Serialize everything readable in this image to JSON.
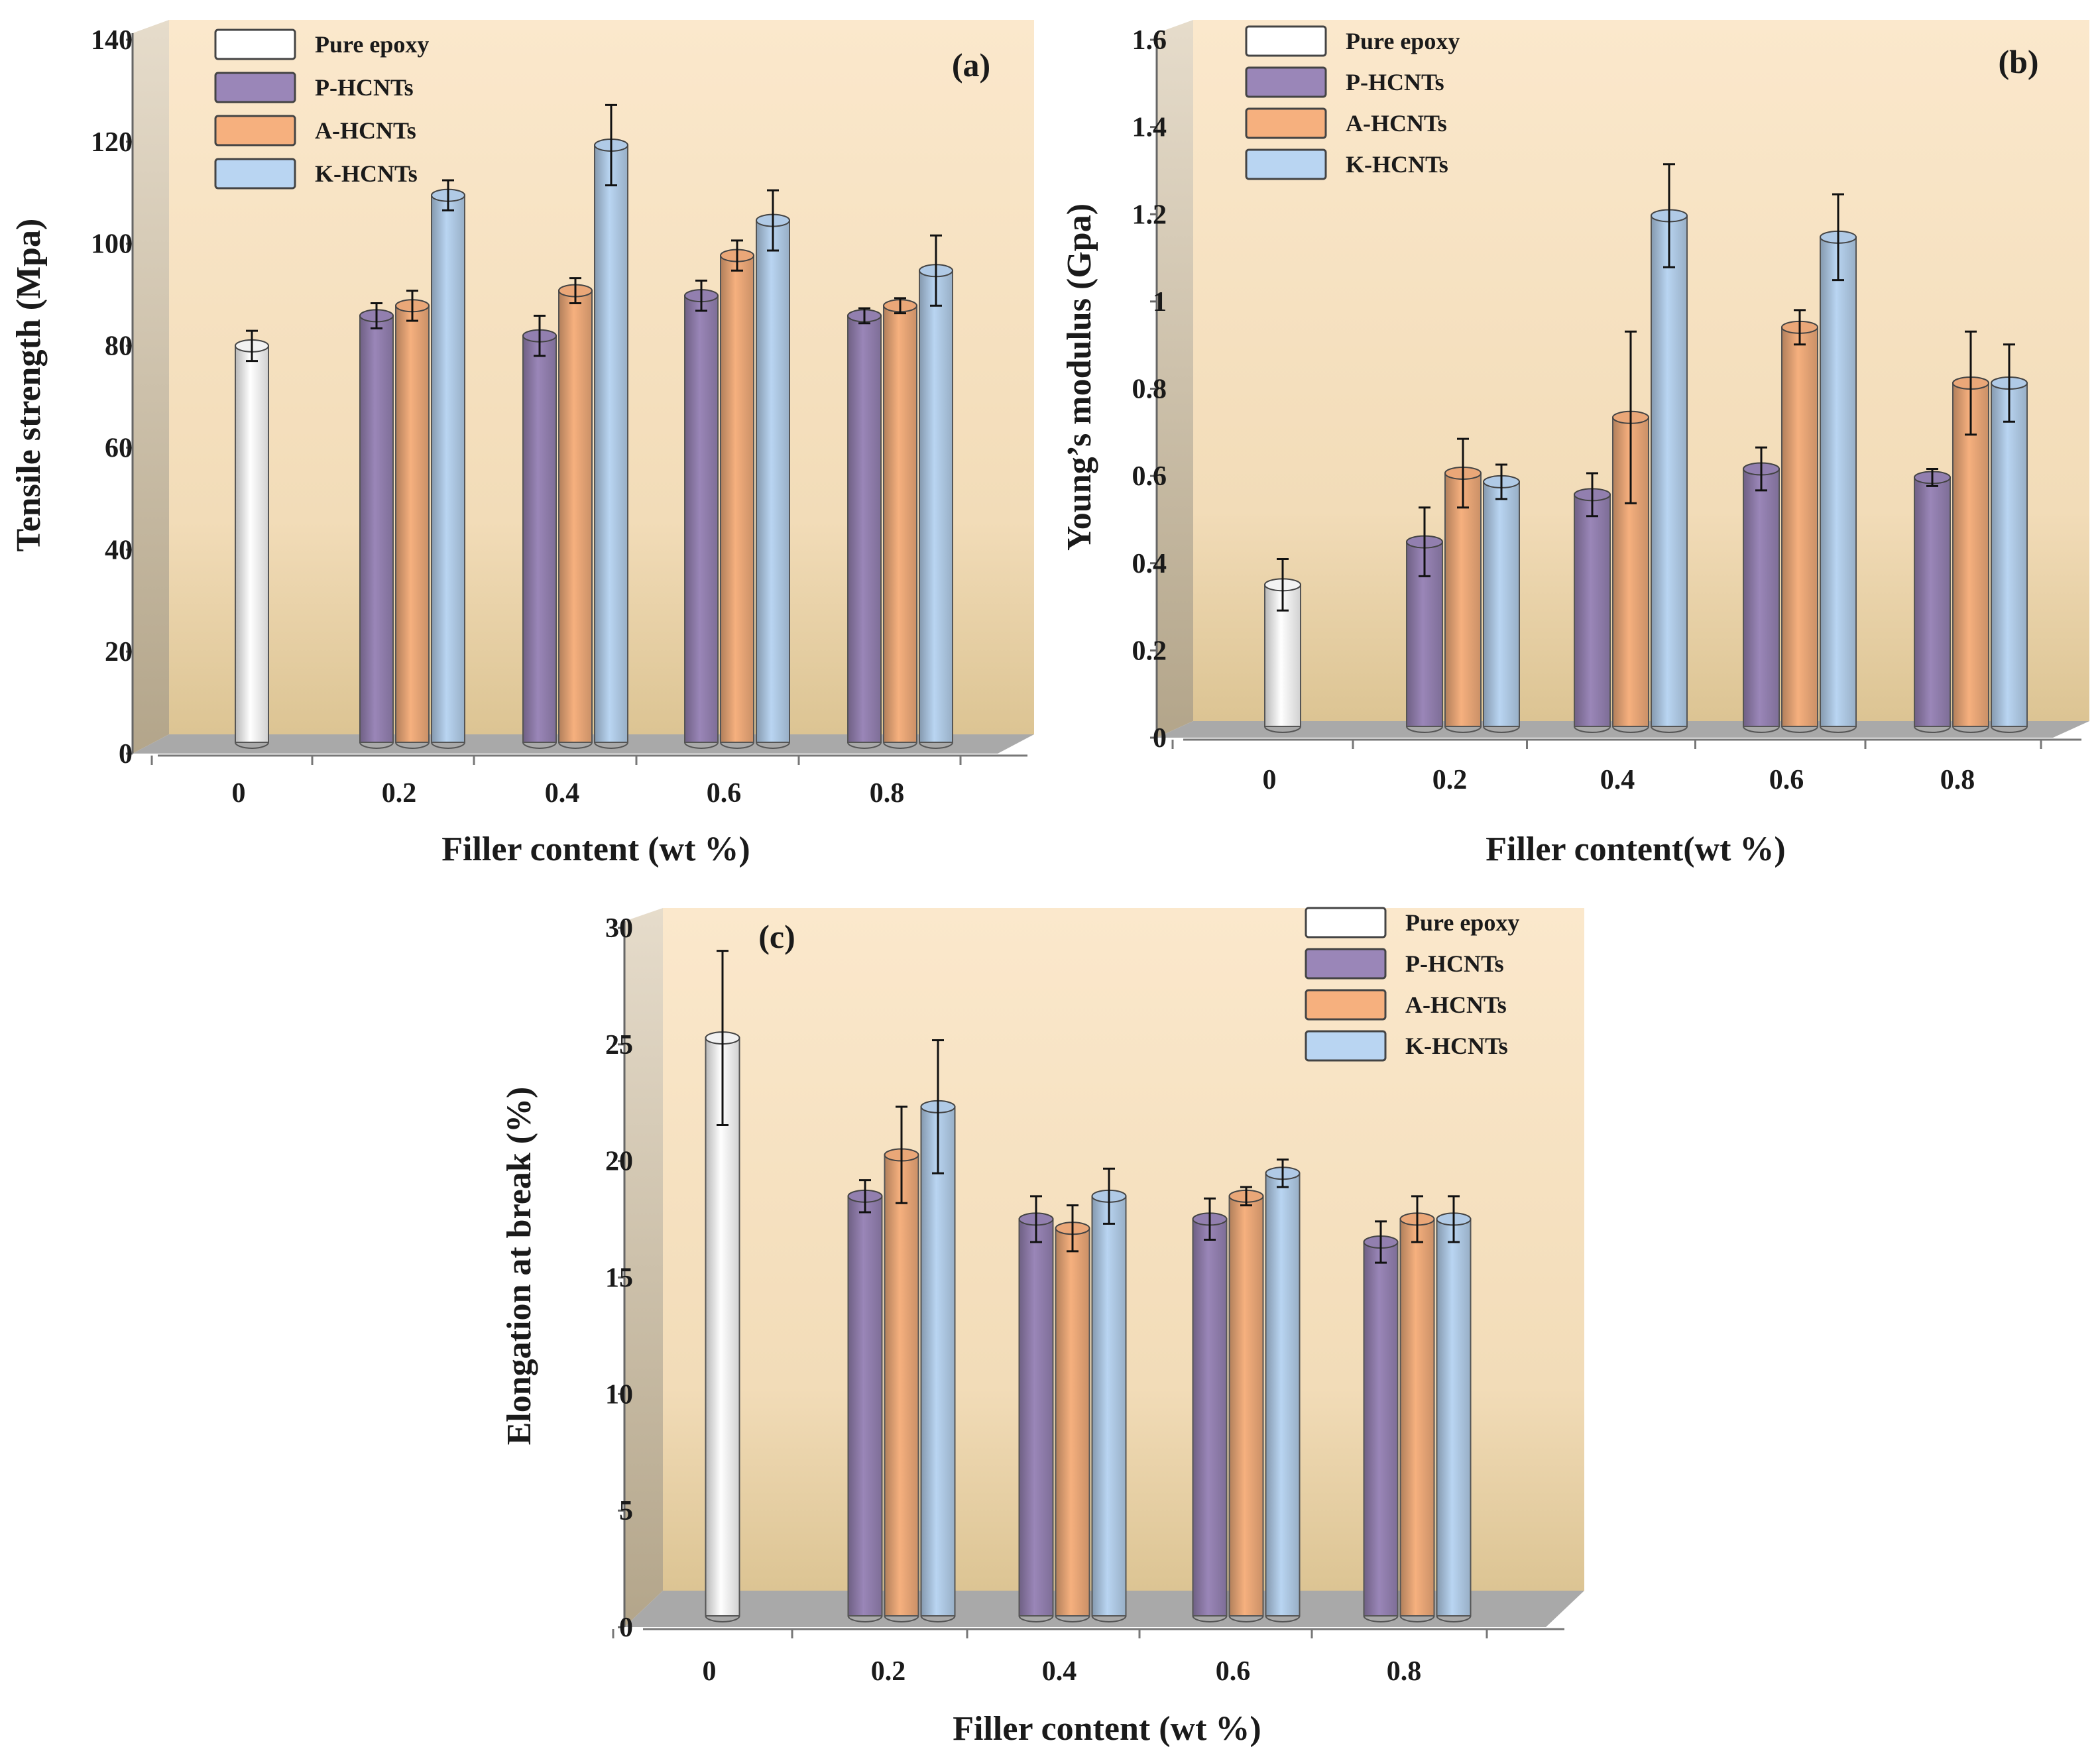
{
  "chart_data": [
    {
      "id": "a",
      "type": "bar",
      "panel_label": "(a)",
      "title": "",
      "xlabel": "Filler content (wt %)",
      "ylabel": "Tensile strength (Mpa)",
      "ylim": [
        0,
        140
      ],
      "yticks": [
        0,
        20,
        40,
        60,
        80,
        100,
        120,
        140
      ],
      "categories": [
        "0",
        "0.2",
        "0.4",
        "0.6",
        "0.8"
      ],
      "legend_position": "top-left",
      "series": [
        {
          "name": "Pure epoxy",
          "color": "#ffffff",
          "values": [
            79,
            null,
            null,
            null,
            null
          ],
          "errors": [
            3,
            null,
            null,
            null,
            null
          ]
        },
        {
          "name": "P-HCNTs",
          "color": "#9a86b8",
          "values": [
            null,
            85,
            81,
            89,
            85
          ],
          "errors": [
            null,
            2.5,
            4,
            3,
            1.5
          ]
        },
        {
          "name": "A-HCNTs",
          "color": "#f6b07e",
          "values": [
            null,
            87,
            90,
            97,
            87
          ],
          "errors": [
            null,
            3,
            2.5,
            3,
            1.5
          ]
        },
        {
          "name": "K-HCNTs",
          "color": "#b9d5f2",
          "values": [
            null,
            109,
            119,
            104,
            94
          ],
          "errors": [
            null,
            3,
            8,
            6,
            7
          ]
        }
      ]
    },
    {
      "id": "b",
      "type": "bar",
      "panel_label": "(b)",
      "title": "",
      "xlabel": "Filler content(wt %)",
      "ylabel": "Young’s modulus (Gpa)",
      "ylim": [
        0,
        1.6
      ],
      "yticks": [
        0,
        0.2,
        0.4,
        0.6,
        0.8,
        1,
        1.2,
        1.4,
        1.6
      ],
      "ytick_labels": [
        "0",
        "0.2",
        "0.4",
        "0.6",
        "0.8",
        "1",
        "1.2",
        "1.4",
        "1.6"
      ],
      "categories": [
        "0",
        "0.2",
        "0.4",
        "0.6",
        "0.8"
      ],
      "legend_position": "top-left",
      "series": [
        {
          "name": "Pure epoxy",
          "color": "#ffffff",
          "values": [
            0.33,
            null,
            null,
            null,
            null
          ],
          "errors": [
            0.06,
            null,
            null,
            null,
            null
          ]
        },
        {
          "name": "P-HCNTs",
          "color": "#9a86b8",
          "values": [
            null,
            0.43,
            0.54,
            0.6,
            0.58
          ],
          "errors": [
            null,
            0.08,
            0.05,
            0.05,
            0.02
          ]
        },
        {
          "name": "A-HCNTs",
          "color": "#f6b07e",
          "values": [
            null,
            0.59,
            0.72,
            0.93,
            0.8
          ],
          "errors": [
            null,
            0.08,
            0.2,
            0.04,
            0.12
          ]
        },
        {
          "name": "K-HCNTs",
          "color": "#b9d5f2",
          "values": [
            null,
            0.57,
            1.19,
            1.14,
            0.8
          ],
          "errors": [
            null,
            0.04,
            0.12,
            0.1,
            0.09
          ]
        }
      ]
    },
    {
      "id": "c",
      "type": "bar",
      "panel_label": "(c)",
      "title": "",
      "xlabel": "Filler content (wt %)",
      "ylabel": "Elongation at break (%)",
      "ylim": [
        0,
        30
      ],
      "yticks": [
        0,
        5,
        10,
        15,
        20,
        25,
        30
      ],
      "categories": [
        "0",
        "0.2",
        "0.4",
        "0.6",
        "0.8"
      ],
      "legend_position": "top-right",
      "series": [
        {
          "name": "Pure epoxy",
          "color": "#ffffff",
          "values": [
            25.2,
            null,
            null,
            null,
            null
          ],
          "errors": [
            3.8,
            null,
            null,
            null,
            null
          ]
        },
        {
          "name": "P-HCNTs",
          "color": "#9a86b8",
          "values": [
            null,
            18.3,
            17.3,
            17.3,
            16.3
          ],
          "errors": [
            null,
            0.7,
            1.0,
            0.9,
            0.9
          ]
        },
        {
          "name": "A-HCNTs",
          "color": "#f6b07e",
          "values": [
            null,
            20.1,
            16.9,
            18.3,
            17.3
          ],
          "errors": [
            null,
            2.1,
            1.0,
            0.4,
            1.0
          ]
        },
        {
          "name": "K-HCNTs",
          "color": "#b9d5f2",
          "values": [
            null,
            22.2,
            18.3,
            19.3,
            17.3
          ],
          "errors": [
            null,
            2.9,
            1.2,
            0.6,
            1.0
          ]
        }
      ]
    }
  ]
}
